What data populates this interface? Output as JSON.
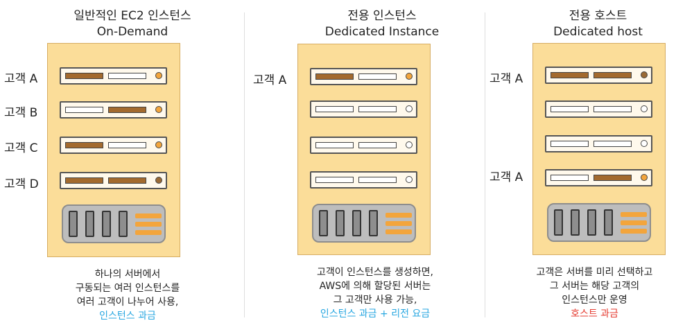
{
  "colors": {
    "server_body": "#fbdd99",
    "slot_dark": "#a36a2e",
    "led_orange": "#f3a53c",
    "highlight_blue": "#29a7e1",
    "highlight_red": "#e53b30"
  },
  "columns": [
    {
      "title_kr": "일반적인 EC2 인스턴스",
      "title_en": "On-Demand",
      "customer_labels": [
        "고객 A",
        "고객 B",
        "고객 C",
        "고객 D"
      ],
      "caption_lines": [
        "하나의 서버에서",
        "구동되는 여러 인스턴스를",
        "여러 고객이 나누어 사용,"
      ],
      "highlight": "인스턴스 과금"
    },
    {
      "title_kr": "전용 인스턴스",
      "title_en": "Dedicated Instance",
      "customer_labels": [
        "고객 A"
      ],
      "caption_lines": [
        "고객이 인스턴스를 생성하면,",
        "AWS에 의해 할당된 서버는",
        "그 고객만 사용 가능,"
      ],
      "highlight": "인스턴스 과금 + 리전 요금"
    },
    {
      "title_kr": "전용 호스트",
      "title_en": "Dedicated host",
      "customer_labels": [
        "고객 A",
        "고객 A"
      ],
      "caption_lines": [
        "고객은 서버를 미리  선택하고",
        "그 서버는 해당 고객의",
        "인스턴스만 운영"
      ],
      "highlight": "호스트 과금"
    }
  ]
}
